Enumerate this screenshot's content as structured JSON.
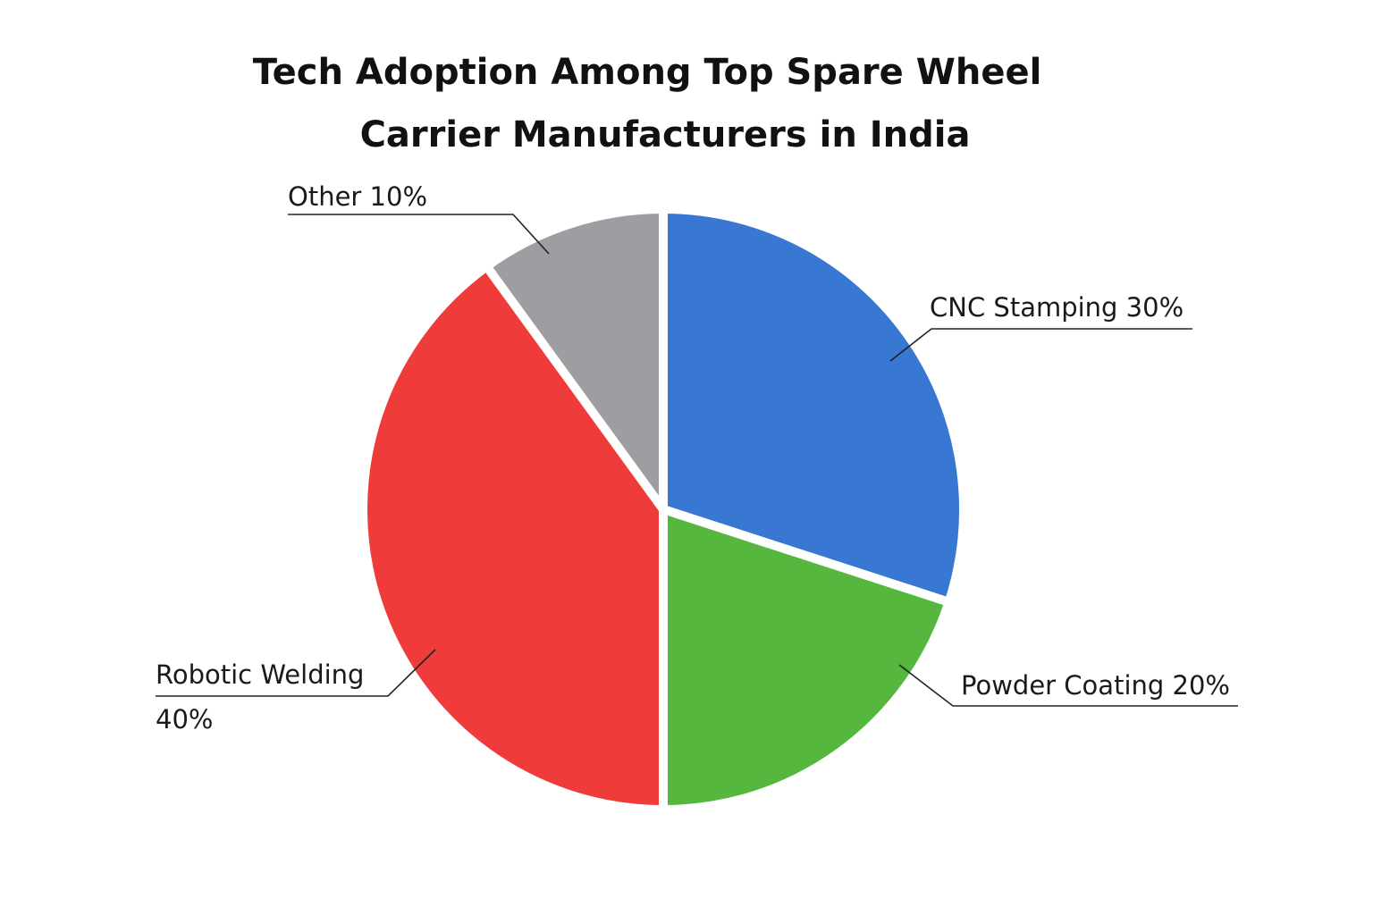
{
  "chart_data": {
    "type": "pie",
    "title": "Tech Adoption Among Top Spare Wheel Carrier Manufacturers in India",
    "title_lines": [
      "Tech Adoption Among Top Spare Wheel",
      "Carrier Manufacturers in India"
    ],
    "slices": [
      {
        "name": "CNC Stamping",
        "value": 30,
        "color": "#3878D2",
        "label_lines": [
          "CNC Stamping 30%"
        ]
      },
      {
        "name": "Powder Coating",
        "value": 20,
        "color": "#55B73E",
        "label_lines": [
          "Powder Coating 20%"
        ]
      },
      {
        "name": "Robotic Welding",
        "value": 40,
        "color": "#EF3B3A",
        "label_lines": [
          "Robotic Welding",
          "40%"
        ]
      },
      {
        "name": "Other",
        "value": 10,
        "color": "#9C9EA1",
        "label_lines": [
          "Other 10%"
        ]
      }
    ]
  }
}
